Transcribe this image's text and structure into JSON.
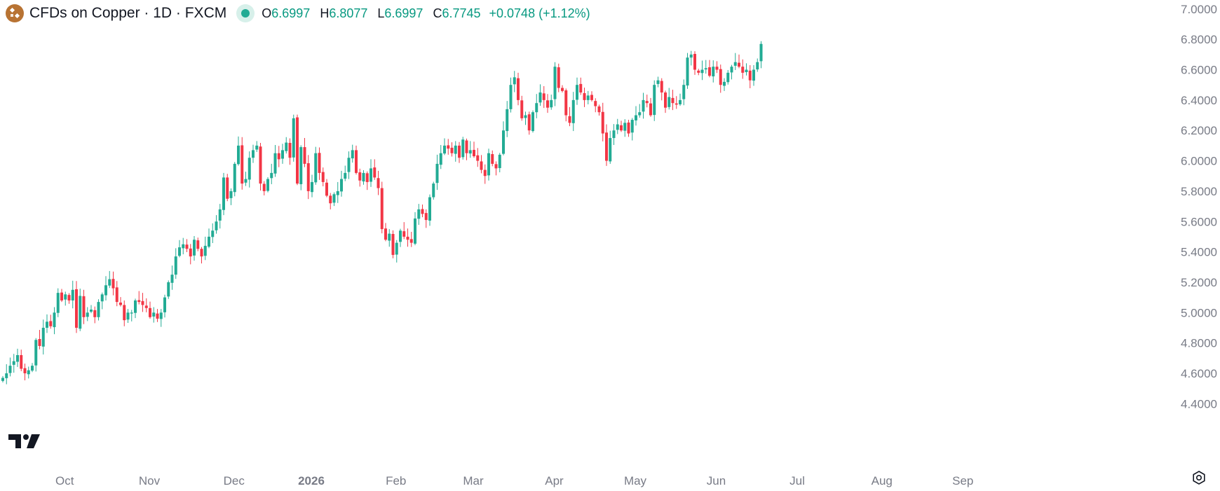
{
  "header": {
    "symbol_title": "CFDs on Copper · 1D · FXCM",
    "symbol_icon": "copper-symbol-icon",
    "status_icon": "market-open-dot-icon",
    "ohlc": {
      "o_label": "O",
      "o_value": "6.6997",
      "h_label": "H",
      "h_value": "6.8077",
      "l_label": "L",
      "l_value": "6.6997",
      "c_label": "C",
      "c_value": "6.7745"
    },
    "change": "+0.0748 (+1.12%)"
  },
  "colors": {
    "up": "#22ab94",
    "down": "#f23645",
    "axis_text": "#787b86",
    "change": "#089981"
  },
  "icons": {
    "logo": "tradingview-logo-icon",
    "settings": "chart-settings-icon"
  },
  "chart_data": {
    "type": "candlestick",
    "title": "",
    "xlabel": "",
    "ylabel": "",
    "ylim": [
      4.3,
      7.05
    ],
    "y_ticks": [
      "7.0000",
      "6.8000",
      "6.6000",
      "6.4000",
      "6.2000",
      "6.0000",
      "5.8000",
      "5.6000",
      "5.4000",
      "5.2000",
      "5.0000",
      "4.8000",
      "4.6000",
      "4.4000"
    ],
    "x_ticks": [
      "Oct",
      "Nov",
      "Dec",
      "2026",
      "Feb",
      "Mar",
      "Apr",
      "May",
      "Jun",
      "Jul",
      "Aug",
      "Sep"
    ],
    "x_tick_bar_index": [
      13,
      36,
      59,
      80,
      103,
      124,
      146,
      168,
      190,
      212,
      235,
      257
    ],
    "closes": [
      4.57,
      4.6,
      4.65,
      4.68,
      4.72,
      4.63,
      4.6,
      4.62,
      4.65,
      4.82,
      4.78,
      4.9,
      4.94,
      4.91,
      5.0,
      5.13,
      5.08,
      5.12,
      5.08,
      5.15,
      4.9,
      5.11,
      4.97,
      5.0,
      5.02,
      4.97,
      5.07,
      5.12,
      5.18,
      5.22,
      5.16,
      5.07,
      5.05,
      4.95,
      5.0,
      5.0,
      5.08,
      5.07,
      5.05,
      5.03,
      4.97,
      5.0,
      4.96,
      5.0,
      5.1,
      5.2,
      5.25,
      5.37,
      5.43,
      5.45,
      5.42,
      5.37,
      5.48,
      5.42,
      5.37,
      5.44,
      5.5,
      5.54,
      5.6,
      5.68,
      5.89,
      5.75,
      5.8,
      5.98,
      6.1,
      5.85,
      5.88,
      6.02,
      6.07,
      6.1,
      5.85,
      5.8,
      5.88,
      5.92,
      6.05,
      6.01,
      6.07,
      6.12,
      6.02,
      6.28,
      5.85,
      6.09,
      5.98,
      5.8,
      5.86,
      6.05,
      5.92,
      5.86,
      5.77,
      5.72,
      5.78,
      5.8,
      5.88,
      5.92,
      6.02,
      6.07,
      5.92,
      5.87,
      5.92,
      5.86,
      5.95,
      5.89,
      5.82,
      5.55,
      5.48,
      5.52,
      5.38,
      5.46,
      5.54,
      5.5,
      5.48,
      5.46,
      5.62,
      5.68,
      5.65,
      5.61,
      5.76,
      5.85,
      5.98,
      6.05,
      6.1,
      6.08,
      6.05,
      6.1,
      6.02,
      6.14,
      6.05,
      6.07,
      6.03,
      6.0,
      5.94,
      5.9,
      6.05,
      5.98,
      5.95,
      6.04,
      6.2,
      6.34,
      6.5,
      6.55,
      6.4,
      6.28,
      6.3,
      6.2,
      6.32,
      6.38,
      6.45,
      6.4,
      6.35,
      6.4,
      6.62,
      6.48,
      6.46,
      6.3,
      6.25,
      6.4,
      6.5,
      6.45,
      6.4,
      6.43,
      6.4,
      6.36,
      6.32,
      6.18,
      6.0,
      6.15,
      6.2,
      6.24,
      6.2,
      6.25,
      6.18,
      6.27,
      6.3,
      6.32,
      6.4,
      6.38,
      6.3,
      6.5,
      6.53,
      6.45,
      6.35,
      6.42,
      6.38,
      6.37,
      6.4,
      6.5,
      6.68,
      6.7,
      6.6,
      6.58,
      6.6,
      6.61,
      6.56,
      6.62,
      6.6,
      6.5,
      6.52,
      6.58,
      6.62,
      6.65,
      6.62,
      6.58,
      6.6,
      6.53,
      6.6,
      6.65,
      6.77
    ]
  }
}
